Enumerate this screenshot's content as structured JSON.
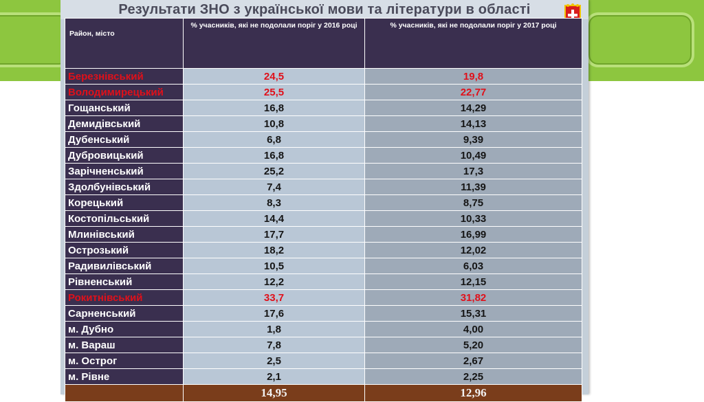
{
  "title": "Результати ЗНО з української мови та літератури в області",
  "colors": {
    "highlight": "#e0101a",
    "header_bg": "#3a2f4f",
    "total_bg": "#7a3d1b"
  },
  "icons": {
    "coat_of_arms": "coat-of-arms-icon"
  },
  "table": {
    "headers": {
      "col1": "Район, місто",
      "col2": "% учасників, які не подолали поріг у 2016 році",
      "col3": "% учасників, які не подолали поріг у 2017 році"
    },
    "rows": [
      {
        "name": "Березнівський",
        "v2016": "24,5",
        "v2017": "19,8",
        "highlight": true
      },
      {
        "name": "Володимирецький",
        "v2016": "25,5",
        "v2017": "22,77",
        "highlight": true
      },
      {
        "name": "Гощанський",
        "v2016": "16,8",
        "v2017": "14,29",
        "highlight": false
      },
      {
        "name": "Демидівський",
        "v2016": "10,8",
        "v2017": "14,13",
        "highlight": false
      },
      {
        "name": "Дубенський",
        "v2016": "6,8",
        "v2017": "9,39",
        "highlight": false
      },
      {
        "name": "Дубровицький",
        "v2016": "16,8",
        "v2017": "10,49",
        "highlight": false
      },
      {
        "name": "Зарічненський",
        "v2016": "25,2",
        "v2017": "17,3",
        "highlight": false
      },
      {
        "name": "Здолбунівський",
        "v2016": "7,4",
        "v2017": "11,39",
        "highlight": false
      },
      {
        "name": "Корецький",
        "v2016": "8,3",
        "v2017": "8,75",
        "highlight": false
      },
      {
        "name": "Костопільський",
        "v2016": "14,4",
        "v2017": "10,33",
        "highlight": false
      },
      {
        "name": "Млинівський",
        "v2016": "17,7",
        "v2017": "16,99",
        "highlight": false
      },
      {
        "name": "Острозький",
        "v2016": "18,2",
        "v2017": "12,02",
        "highlight": false
      },
      {
        "name": "Радивилівський",
        "v2016": "10,5",
        "v2017": "6,03",
        "highlight": false
      },
      {
        "name": "Рівненський",
        "v2016": "12,2",
        "v2017": "12,15",
        "highlight": false
      },
      {
        "name": "Рокитнівський",
        "v2016": "33,7",
        "v2017": "31,82",
        "highlight": true
      },
      {
        "name": "Сарненський",
        "v2016": "17,6",
        "v2017": "15,31",
        "highlight": false
      },
      {
        "name": "м. Дубно",
        "v2016": "1,8",
        "v2017": "4,00",
        "highlight": false
      },
      {
        "name": "м. Вараш",
        "v2016": "7,8",
        "v2017": "5,20",
        "highlight": false
      },
      {
        "name": "м. Острог",
        "v2016": "2,5",
        "v2017": "2,67",
        "highlight": false
      },
      {
        "name": "м. Рівне",
        "v2016": "2,1",
        "v2017": "2,25",
        "highlight": false
      }
    ],
    "total": {
      "name": "",
      "v2016": "14,95",
      "v2017": "12,96"
    }
  }
}
